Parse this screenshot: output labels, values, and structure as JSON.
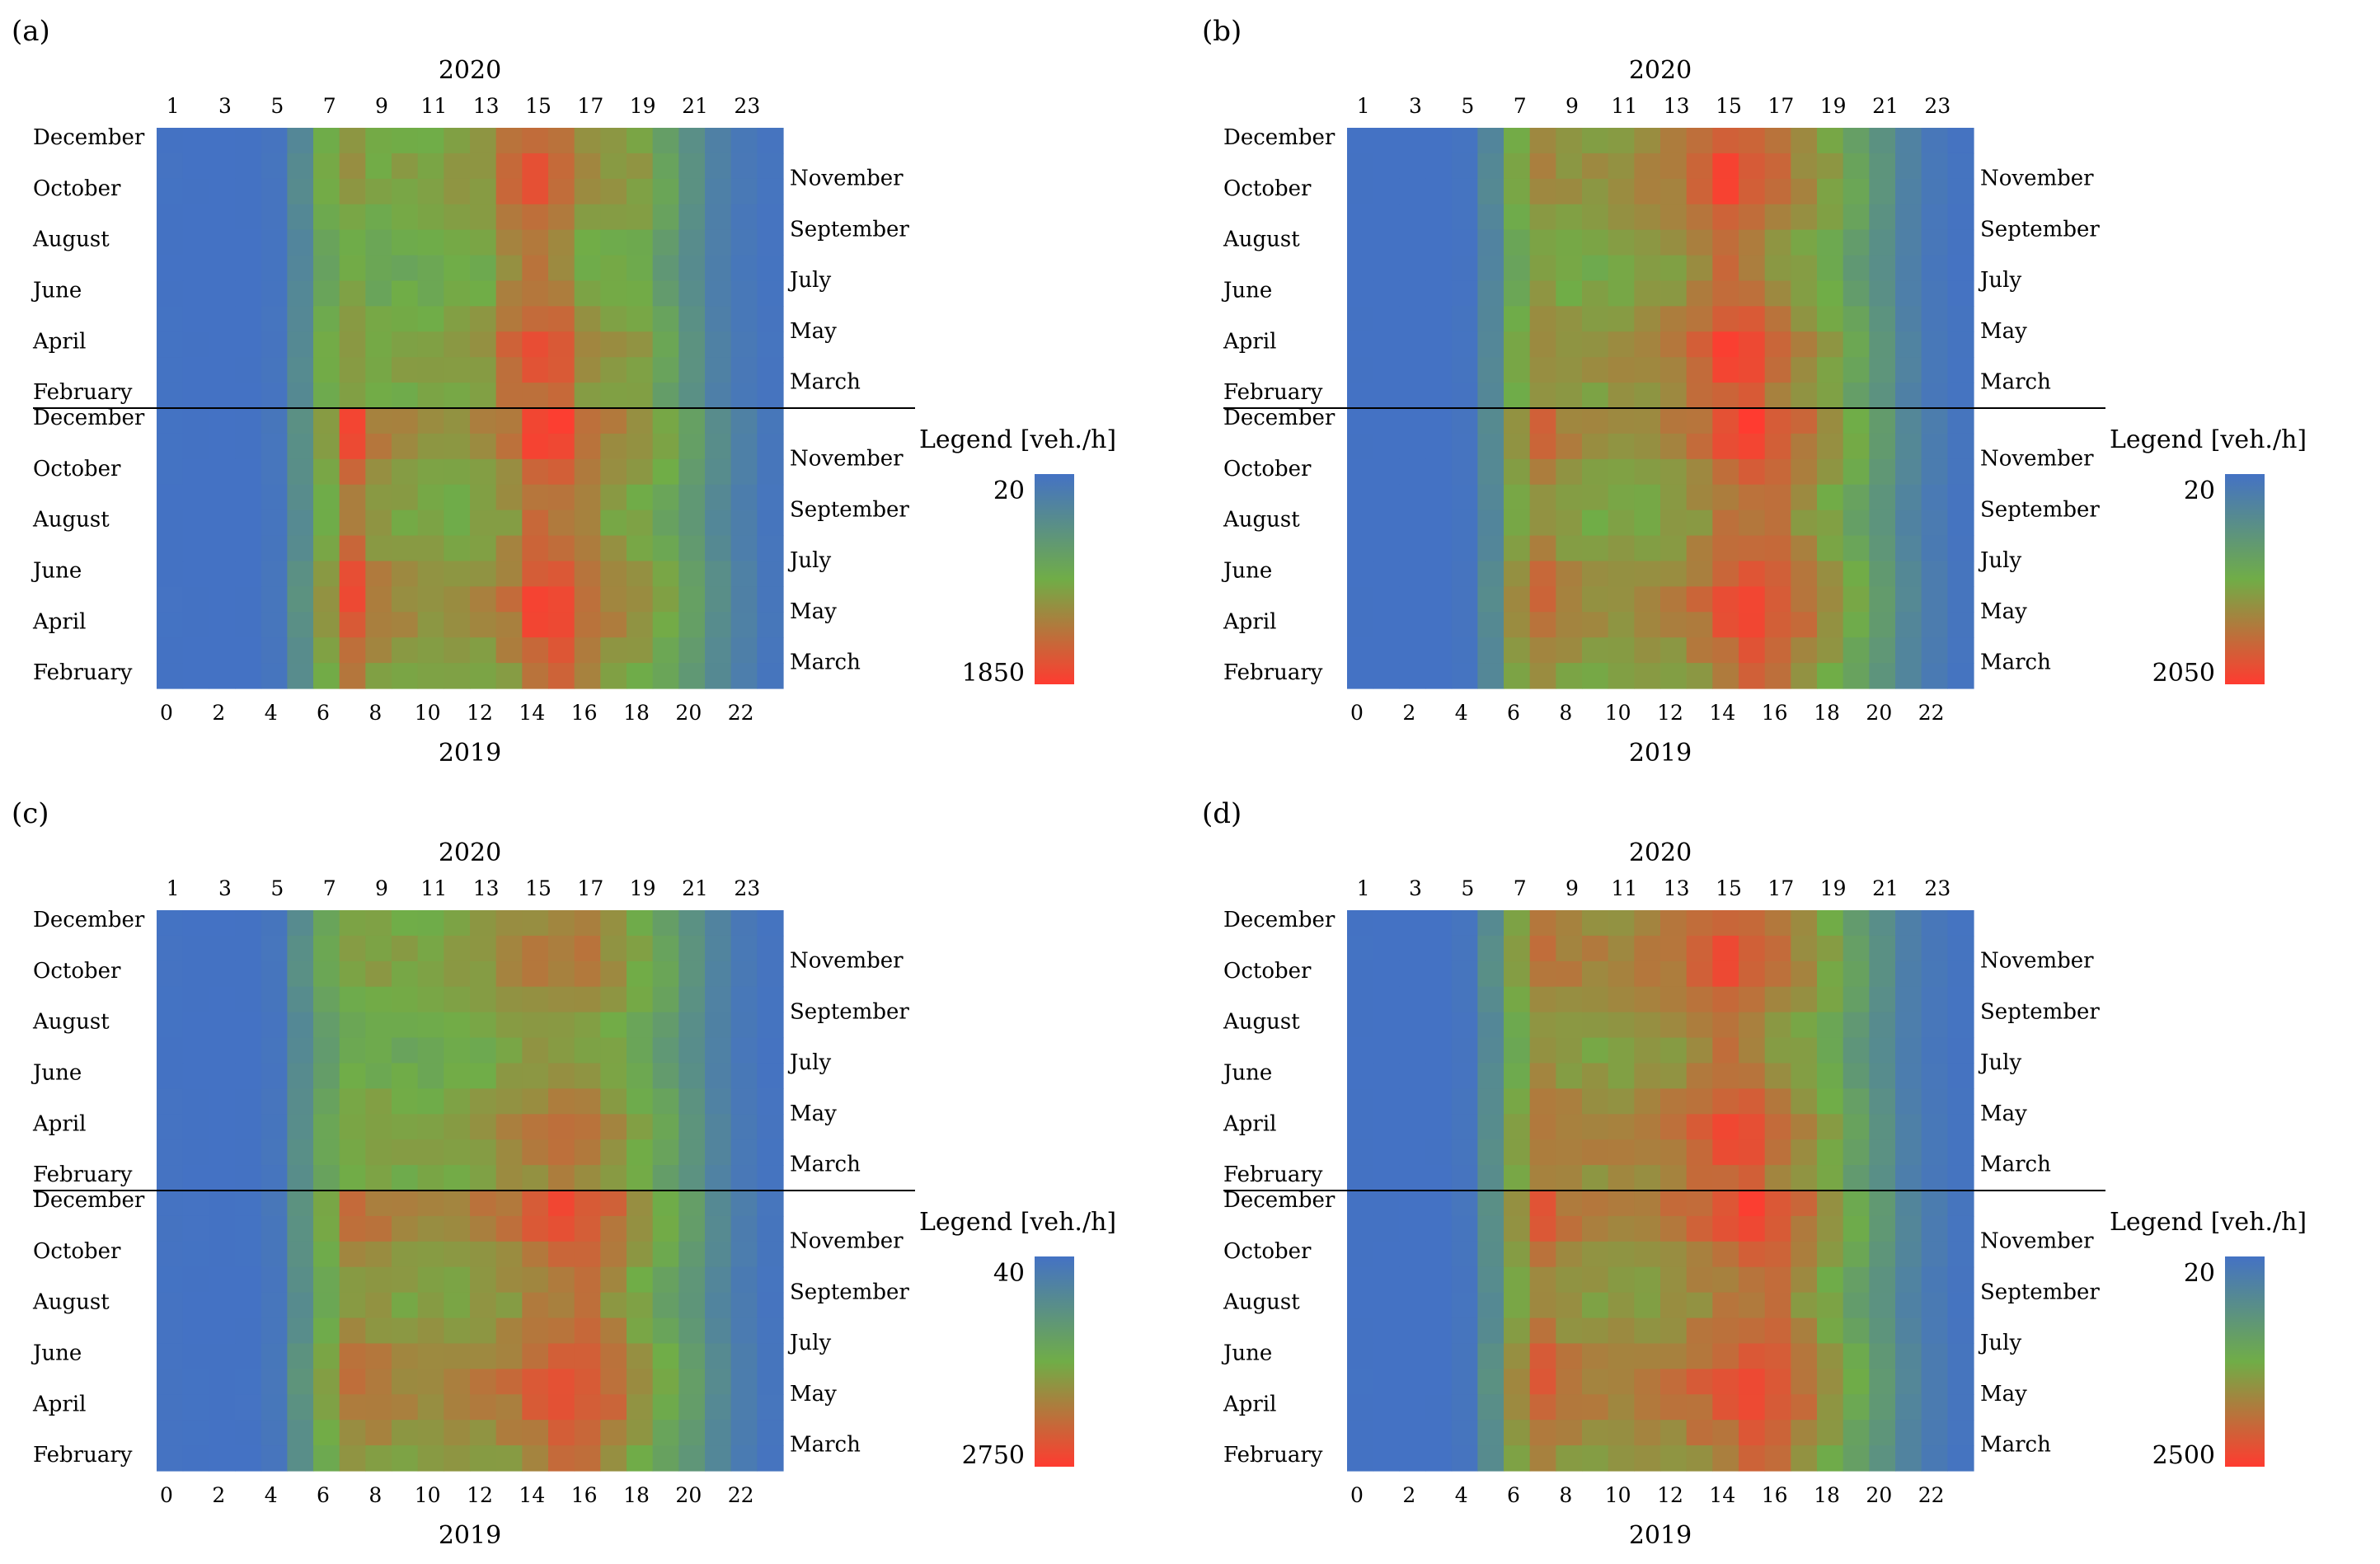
{
  "colors": {
    "low": "#4472c4",
    "mid": "#70ad47",
    "high": "#ff3b30"
  },
  "chart_data": [
    {
      "id": "a",
      "type": "heatmap",
      "panel_label": "(a)",
      "top_title": "2020",
      "bottom_title": "2019",
      "top_ticks": [
        "1",
        "3",
        "5",
        "7",
        "9",
        "11",
        "13",
        "15",
        "17",
        "19",
        "21",
        "23"
      ],
      "bottom_ticks": [
        "0",
        "2",
        "4",
        "6",
        "8",
        "10",
        "12",
        "14",
        "16",
        "18",
        "20",
        "22"
      ],
      "left_labels_top": [
        "December",
        "October",
        "August",
        "June",
        "April",
        "February"
      ],
      "right_labels_top": [
        "November",
        "September",
        "July",
        "May",
        "March"
      ],
      "left_labels_bottom": [
        "December",
        "October",
        "August",
        "June",
        "April",
        "February"
      ],
      "right_labels_bottom": [
        "November",
        "September",
        "July",
        "May",
        "March"
      ],
      "legend_title": "Legend [veh./h]",
      "legend_min": "20",
      "legend_max": "1850",
      "vmin": 20,
      "vmax": 1850,
      "x_hours": [
        0,
        1,
        2,
        3,
        4,
        5,
        6,
        7,
        8,
        9,
        10,
        11,
        12,
        13,
        14,
        15,
        16,
        17,
        18,
        19,
        20,
        21,
        22,
        23
      ],
      "hourly_profile_2020": [
        30,
        25,
        22,
        25,
        60,
        400,
        1000,
        1150,
        1000,
        1050,
        1050,
        1100,
        1150,
        1500,
        1650,
        1550,
        1200,
        1150,
        1100,
        800,
        500,
        250,
        120,
        60
      ],
      "hourly_profile_2019": [
        30,
        25,
        22,
        25,
        80,
        500,
        1100,
        1700,
        1350,
        1250,
        1200,
        1200,
        1250,
        1400,
        1750,
        1780,
        1500,
        1300,
        1200,
        1000,
        700,
        450,
        250,
        90
      ]
    },
    {
      "id": "b",
      "type": "heatmap",
      "panel_label": "(b)",
      "top_title": "2020",
      "bottom_title": "2019",
      "top_ticks": [
        "1",
        "3",
        "5",
        "7",
        "9",
        "11",
        "13",
        "15",
        "17",
        "19",
        "21",
        "23"
      ],
      "bottom_ticks": [
        "0",
        "2",
        "4",
        "6",
        "8",
        "10",
        "12",
        "14",
        "16",
        "18",
        "20",
        "22"
      ],
      "left_labels_top": [
        "December",
        "October",
        "August",
        "June",
        "April",
        "February"
      ],
      "right_labels_top": [
        "November",
        "September",
        "July",
        "May",
        "March"
      ],
      "left_labels_bottom": [
        "December",
        "October",
        "August",
        "June",
        "April",
        "February"
      ],
      "right_labels_bottom": [
        "November",
        "September",
        "July",
        "May",
        "March"
      ],
      "legend_title": "Legend [veh./h]",
      "legend_min": "20",
      "legend_max": "2050",
      "vmin": 20,
      "vmax": 2050,
      "x_hours": [
        0,
        1,
        2,
        3,
        4,
        5,
        6,
        7,
        8,
        9,
        10,
        11,
        12,
        13,
        14,
        15,
        16,
        17,
        18,
        19,
        20,
        21,
        22,
        23
      ],
      "hourly_profile_2020": [
        25,
        22,
        20,
        22,
        50,
        400,
        1150,
        1400,
        1300,
        1300,
        1350,
        1400,
        1500,
        1700,
        1950,
        1850,
        1600,
        1400,
        1200,
        900,
        600,
        300,
        120,
        50
      ],
      "hourly_profile_2019": [
        25,
        22,
        20,
        22,
        60,
        450,
        1300,
        1650,
        1450,
        1350,
        1350,
        1400,
        1450,
        1600,
        1850,
        2000,
        1850,
        1600,
        1350,
        1050,
        700,
        400,
        200,
        70
      ]
    },
    {
      "id": "c",
      "type": "heatmap",
      "panel_label": "(c)",
      "top_title": "2020",
      "bottom_title": "2019",
      "top_ticks": [
        "1",
        "3",
        "5",
        "7",
        "9",
        "11",
        "13",
        "15",
        "17",
        "19",
        "21",
        "23"
      ],
      "bottom_ticks": [
        "0",
        "2",
        "4",
        "6",
        "8",
        "10",
        "12",
        "14",
        "16",
        "18",
        "20",
        "22"
      ],
      "left_labels_top": [
        "December",
        "October",
        "August",
        "June",
        "April",
        "February"
      ],
      "right_labels_top": [
        "November",
        "September",
        "July",
        "May",
        "March"
      ],
      "left_labels_bottom": [
        "December",
        "October",
        "August",
        "June",
        "April",
        "February"
      ],
      "right_labels_bottom": [
        "November",
        "September",
        "July",
        "May",
        "March"
      ],
      "legend_title": "Legend [veh./h]",
      "legend_min": "40",
      "legend_max": "2750",
      "vmin": 40,
      "vmax": 2750,
      "x_hours": [
        0,
        1,
        2,
        3,
        4,
        5,
        6,
        7,
        8,
        9,
        10,
        11,
        12,
        13,
        14,
        15,
        16,
        17,
        18,
        19,
        20,
        21,
        22,
        23
      ],
      "hourly_profile_2020": [
        60,
        50,
        45,
        50,
        120,
        700,
        1300,
        1550,
        1600,
        1550,
        1550,
        1600,
        1700,
        1900,
        2000,
        2050,
        2000,
        1800,
        1500,
        1200,
        800,
        450,
        200,
        90
      ],
      "hourly_profile_2019": [
        70,
        55,
        50,
        55,
        150,
        800,
        1500,
        2100,
        2050,
        1900,
        1900,
        1950,
        2000,
        2100,
        2350,
        2550,
        2500,
        2200,
        1800,
        1400,
        1000,
        600,
        300,
        120
      ]
    },
    {
      "id": "d",
      "type": "heatmap",
      "panel_label": "(d)",
      "top_title": "2020",
      "bottom_title": "2019",
      "top_ticks": [
        "1",
        "3",
        "5",
        "7",
        "9",
        "11",
        "13",
        "15",
        "17",
        "19",
        "21",
        "23"
      ],
      "bottom_ticks": [
        "0",
        "2",
        "4",
        "6",
        "8",
        "10",
        "12",
        "14",
        "16",
        "18",
        "20",
        "22"
      ],
      "left_labels_top": [
        "December",
        "October",
        "August",
        "June",
        "April",
        "February"
      ],
      "right_labels_top": [
        "November",
        "September",
        "July",
        "May",
        "March"
      ],
      "left_labels_bottom": [
        "December",
        "October",
        "August",
        "June",
        "April",
        "February"
      ],
      "right_labels_bottom": [
        "November",
        "September",
        "July",
        "May",
        "March"
      ],
      "legend_title": "Legend [veh./h]",
      "legend_min": "20",
      "legend_max": "2500",
      "vmin": 20,
      "vmax": 2500,
      "x_hours": [
        0,
        1,
        2,
        3,
        4,
        5,
        6,
        7,
        8,
        9,
        10,
        11,
        12,
        13,
        14,
        15,
        16,
        17,
        18,
        19,
        20,
        21,
        22,
        23
      ],
      "hourly_profile_2020": [
        30,
        25,
        22,
        25,
        80,
        600,
        1500,
        1900,
        1800,
        1750,
        1750,
        1800,
        1900,
        2100,
        2300,
        2200,
        1900,
        1700,
        1400,
        1000,
        650,
        300,
        140,
        60
      ],
      "hourly_profile_2019": [
        30,
        25,
        22,
        25,
        90,
        650,
        1600,
        2150,
        1900,
        1800,
        1800,
        1850,
        1900,
        2050,
        2200,
        2400,
        2300,
        1950,
        1600,
        1200,
        800,
        450,
        220,
        80
      ]
    }
  ]
}
